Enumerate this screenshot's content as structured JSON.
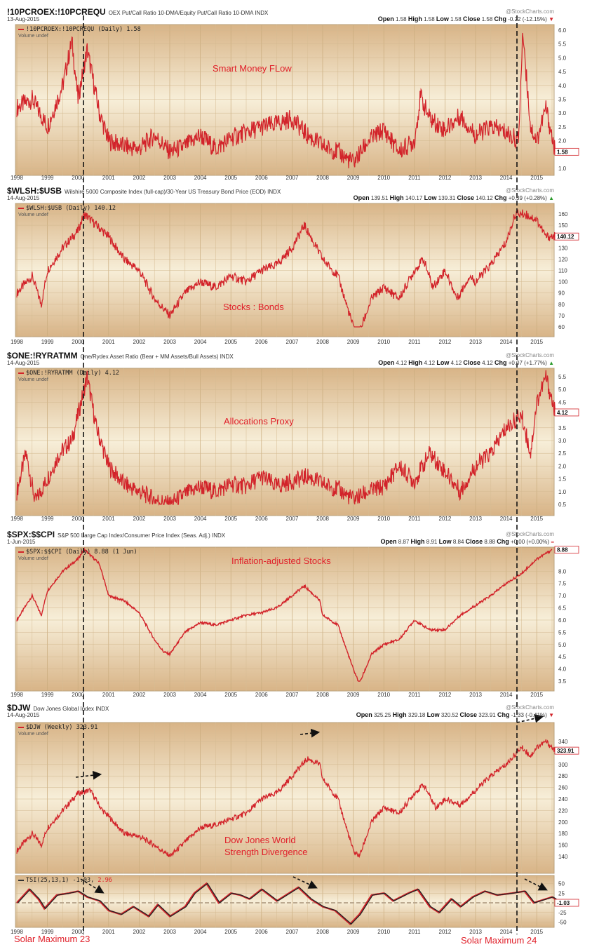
{
  "panels": [
    {
      "symbol": "!10PCROEX:!10PCREQU",
      "desc": "OEX Put/Call Ratio 10-DMA/Equity Put/Call Ratio 10-DMA  INDX",
      "date": "13-Aug-2015",
      "open": "1.58",
      "high": "1.58",
      "low": "1.58",
      "close": "1.58",
      "chg": "-0.22 (-12.15%)",
      "chg_dir": "▼",
      "legend": "!10PCROEX:!10PCREQU (Daily) 1.58",
      "volume": "Volume undef",
      "annotation": "Smart Money FLow",
      "watermark": "@StockCharts.com"
    },
    {
      "symbol": "$WLSH:$USB",
      "desc": "Wilshire 5000 Composite Index (full-cap)/30-Year US Treasury Bond Price (EOD)  INDX",
      "date": "14-Aug-2015",
      "open": "139.51",
      "high": "140.17",
      "low": "139.31",
      "close": "140.12",
      "chg": "+0.39 (+0.28%)",
      "chg_dir": "▲",
      "legend": "$WLSH:$USB (Daily) 140.12",
      "volume": "Volume undef",
      "annotation": "Stocks : Bonds",
      "watermark": "@StockCharts.com"
    },
    {
      "symbol": "$ONE:!RYRATMM",
      "desc": "One/Rydex Asset Ratio (Bear + MM Assets/Bull Assets)  INDX",
      "date": "14-Aug-2015",
      "open": "4.12",
      "high": "4.12",
      "low": "4.12",
      "close": "4.12",
      "chg": "+0.07 (+1.77%)",
      "chg_dir": "▲",
      "legend": "$ONE:!RYRATMM (Daily) 4.12",
      "volume": "Volume undef",
      "annotation": "Allocations Proxy",
      "watermark": "@StockCharts.com"
    },
    {
      "symbol": "$SPX:$$CPI",
      "desc": "S&P 500 Large Cap Index/Consumer Price Index (Seas. Adj.)  INDX",
      "date": "1-Jun-2015",
      "open": "8.87",
      "high": "8.91",
      "low": "8.84",
      "close": "8.88",
      "chg": "+0.00 (+0.00%)",
      "chg_dir": "=",
      "legend": "$SPX:$$CPI (Daily) 8.88 (1 Jun)",
      "volume": "Volume undef",
      "annotation": "Inflation-adjusted Stocks",
      "watermark": "@StockCharts.com"
    },
    {
      "symbol": "$DJW",
      "desc": "Dow Jones Global Index  INDX",
      "date": "14-Aug-2015",
      "open": "325.25",
      "high": "329.18",
      "low": "320.52",
      "close": "323.91",
      "chg": "-1.33 (-0.41%)",
      "chg_dir": "▼",
      "legend": "$DJW (Weekly) 323.91",
      "volume": "Volume undef",
      "annotation": "Dow Jones World",
      "annotation2": "Strength Divergence",
      "watermark": "@StockCharts.com"
    }
  ],
  "tsi": {
    "legend": "TSI(25,13,1) -1.03,",
    "legend_value": "2.96"
  },
  "solar_labels": [
    "Solar Maximum 23",
    "Solar Maximum 24"
  ],
  "colors": {
    "line": "#d2232a",
    "bg_dark": "#d8b487",
    "bg_light": "#f7eed8"
  },
  "chart_data": [
    {
      "type": "line",
      "title": "Smart Money FLow",
      "ylim": [
        1.0,
        6.0
      ],
      "last_label": "1.58",
      "yticks": [
        "6.0",
        "5.5",
        "5.0",
        "4.5",
        "4.0",
        "3.5",
        "3.0",
        "2.5",
        "2.0",
        "1.0"
      ],
      "noise": 0.35,
      "points": [
        [
          1998,
          3.2
        ],
        [
          1998.5,
          3.5
        ],
        [
          1999,
          2.5
        ],
        [
          1999.5,
          4.0
        ],
        [
          1999.8,
          5.6
        ],
        [
          2000,
          3.5
        ],
        [
          2000.3,
          5.3
        ],
        [
          2000.7,
          3.0
        ],
        [
          2001,
          2.0
        ],
        [
          2001.5,
          1.8
        ],
        [
          2002,
          1.7
        ],
        [
          2002.5,
          2.2
        ],
        [
          2003,
          1.6
        ],
        [
          2003.5,
          1.8
        ],
        [
          2004,
          2.2
        ],
        [
          2004.5,
          1.7
        ],
        [
          2005,
          2.1
        ],
        [
          2005.5,
          2.3
        ],
        [
          2006,
          2.5
        ],
        [
          2006.5,
          2.6
        ],
        [
          2007,
          2.8
        ],
        [
          2007.5,
          2.2
        ],
        [
          2008,
          1.8
        ],
        [
          2008.5,
          1.6
        ],
        [
          2009,
          1.2
        ],
        [
          2009.5,
          2.0
        ],
        [
          2010,
          2.4
        ],
        [
          2010.5,
          1.6
        ],
        [
          2011,
          2.0
        ],
        [
          2011.2,
          3.6
        ],
        [
          2011.5,
          2.8
        ],
        [
          2012,
          2.4
        ],
        [
          2012.5,
          2.9
        ],
        [
          2013,
          2.2
        ],
        [
          2013.5,
          2.5
        ],
        [
          2014,
          2.3
        ],
        [
          2014.4,
          2.0
        ],
        [
          2014.55,
          6.0
        ],
        [
          2014.65,
          4.5
        ],
        [
          2014.8,
          2.5
        ],
        [
          2015,
          2.0
        ],
        [
          2015.3,
          3.2
        ],
        [
          2015.6,
          1.6
        ]
      ]
    },
    {
      "type": "line",
      "title": "Stocks : Bonds",
      "ylim": [
        60,
        160
      ],
      "last_label": "140.12",
      "yticks": [
        "160",
        "150",
        "130",
        "120",
        "110",
        "100",
        "90",
        "80",
        "70",
        "60"
      ],
      "noise": 4,
      "points": [
        [
          1998,
          90
        ],
        [
          1998.5,
          105
        ],
        [
          1998.8,
          80
        ],
        [
          1999,
          110
        ],
        [
          1999.5,
          130
        ],
        [
          2000,
          145
        ],
        [
          2000.2,
          160
        ],
        [
          2000.6,
          150
        ],
        [
          2001,
          140
        ],
        [
          2001.5,
          120
        ],
        [
          2002,
          110
        ],
        [
          2002.5,
          85
        ],
        [
          2003,
          70
        ],
        [
          2003.5,
          90
        ],
        [
          2004,
          100
        ],
        [
          2004.5,
          95
        ],
        [
          2005,
          105
        ],
        [
          2005.5,
          100
        ],
        [
          2006,
          110
        ],
        [
          2006.5,
          115
        ],
        [
          2007,
          130
        ],
        [
          2007.4,
          150
        ],
        [
          2007.8,
          130
        ],
        [
          2008,
          120
        ],
        [
          2008.5,
          105
        ],
        [
          2009,
          60
        ],
        [
          2009.2,
          55
        ],
        [
          2009.6,
          85
        ],
        [
          2010,
          95
        ],
        [
          2010.5,
          85
        ],
        [
          2011,
          110
        ],
        [
          2011.3,
          120
        ],
        [
          2011.6,
          95
        ],
        [
          2012,
          110
        ],
        [
          2012.4,
          85
        ],
        [
          2012.8,
          105
        ],
        [
          2013,
          100
        ],
        [
          2013.5,
          115
        ],
        [
          2014,
          135
        ],
        [
          2014.3,
          160
        ],
        [
          2014.6,
          160
        ],
        [
          2015,
          155
        ],
        [
          2015.3,
          140
        ],
        [
          2015.6,
          140
        ]
      ]
    },
    {
      "type": "line",
      "title": "Allocations Proxy",
      "ylim": [
        0.5,
        5.5
      ],
      "last_label": "4.12",
      "yticks": [
        "5.5",
        "5.0",
        "4.5",
        "3.5",
        "3.0",
        "2.5",
        "2.0",
        "1.5",
        "1.0",
        "0.5"
      ],
      "noise": 0.35,
      "points": [
        [
          1998,
          1.0
        ],
        [
          1998.3,
          2.5
        ],
        [
          1998.6,
          0.6
        ],
        [
          1999,
          1.5
        ],
        [
          1999.4,
          2.5
        ],
        [
          1999.8,
          3.0
        ],
        [
          2000,
          4.0
        ],
        [
          2000.3,
          5.5
        ],
        [
          2000.6,
          3.5
        ],
        [
          2001,
          2.0
        ],
        [
          2001.5,
          1.3
        ],
        [
          2002,
          1.0
        ],
        [
          2002.5,
          0.7
        ],
        [
          2003,
          0.5
        ],
        [
          2003.5,
          0.9
        ],
        [
          2004,
          1.2
        ],
        [
          2004.5,
          1.0
        ],
        [
          2005,
          1.3
        ],
        [
          2005.5,
          1.2
        ],
        [
          2006,
          1.6
        ],
        [
          2006.5,
          1.2
        ],
        [
          2007,
          1.4
        ],
        [
          2007.5,
          1.6
        ],
        [
          2008,
          1.3
        ],
        [
          2008.5,
          1.1
        ],
        [
          2009,
          0.7
        ],
        [
          2009.5,
          1.0
        ],
        [
          2010,
          1.2
        ],
        [
          2010.5,
          2.0
        ],
        [
          2011,
          1.4
        ],
        [
          2011.5,
          2.5
        ],
        [
          2012,
          1.8
        ],
        [
          2012.5,
          1.0
        ],
        [
          2013,
          2.0
        ],
        [
          2013.5,
          2.5
        ],
        [
          2014,
          3.5
        ],
        [
          2014.5,
          4.0
        ],
        [
          2014.8,
          2.5
        ],
        [
          2015,
          4.5
        ],
        [
          2015.3,
          5.5
        ],
        [
          2015.6,
          4.1
        ]
      ]
    },
    {
      "type": "line",
      "title": "Inflation-adjusted Stocks",
      "ylim": [
        3.5,
        8.9
      ],
      "last_label": "8.88",
      "yticks": [
        "8.0",
        "7.5",
        "7.0",
        "6.5",
        "6.0",
        "5.5",
        "5.0",
        "4.5",
        "4.0",
        "3.5"
      ],
      "noise": 0.05,
      "points": [
        [
          1998,
          6.0
        ],
        [
          1998.5,
          7.0
        ],
        [
          1998.8,
          6.2
        ],
        [
          1999,
          7.2
        ],
        [
          1999.5,
          8.0
        ],
        [
          2000,
          8.5
        ],
        [
          2000.2,
          8.9
        ],
        [
          2000.7,
          8.3
        ],
        [
          2001,
          7.0
        ],
        [
          2001.5,
          6.8
        ],
        [
          2002,
          6.3
        ],
        [
          2002.5,
          5.2
        ],
        [
          2002.8,
          4.7
        ],
        [
          2003,
          4.6
        ],
        [
          2003.5,
          5.5
        ],
        [
          2004,
          5.9
        ],
        [
          2004.5,
          5.8
        ],
        [
          2005,
          6.0
        ],
        [
          2005.5,
          6.2
        ],
        [
          2006,
          6.3
        ],
        [
          2006.5,
          6.5
        ],
        [
          2007,
          7.0
        ],
        [
          2007.4,
          7.4
        ],
        [
          2007.9,
          6.8
        ],
        [
          2008,
          6.2
        ],
        [
          2008.5,
          5.8
        ],
        [
          2009,
          4.0
        ],
        [
          2009.2,
          3.4
        ],
        [
          2009.6,
          4.6
        ],
        [
          2010,
          5.0
        ],
        [
          2010.5,
          5.2
        ],
        [
          2011,
          6.0
        ],
        [
          2011.5,
          5.6
        ],
        [
          2012,
          5.6
        ],
        [
          2012.5,
          6.2
        ],
        [
          2013,
          6.6
        ],
        [
          2013.5,
          7.0
        ],
        [
          2014,
          7.5
        ],
        [
          2014.5,
          7.9
        ],
        [
          2015,
          8.5
        ],
        [
          2015.5,
          8.88
        ]
      ]
    },
    {
      "type": "line",
      "title": "Dow Jones World Strength Divergence",
      "ylim": [
        140,
        340
      ],
      "last_label": "323.91",
      "yticks": [
        "340",
        "300",
        "280",
        "260",
        "240",
        "220",
        "200",
        "180",
        "160",
        "140"
      ],
      "noise": 5,
      "points": [
        [
          1998,
          150
        ],
        [
          1998.5,
          180
        ],
        [
          1998.8,
          160
        ],
        [
          1999,
          190
        ],
        [
          1999.5,
          220
        ],
        [
          2000,
          250
        ],
        [
          2000.4,
          255
        ],
        [
          2000.8,
          220
        ],
        [
          2001,
          210
        ],
        [
          2001.5,
          180
        ],
        [
          2002,
          175
        ],
        [
          2002.5,
          160
        ],
        [
          2003,
          140
        ],
        [
          2003.5,
          165
        ],
        [
          2004,
          190
        ],
        [
          2004.5,
          195
        ],
        [
          2005,
          205
        ],
        [
          2005.5,
          215
        ],
        [
          2006,
          240
        ],
        [
          2006.5,
          250
        ],
        [
          2007,
          280
        ],
        [
          2007.5,
          310
        ],
        [
          2007.9,
          300
        ],
        [
          2008,
          275
        ],
        [
          2008.5,
          240
        ],
        [
          2009,
          150
        ],
        [
          2009.2,
          140
        ],
        [
          2009.6,
          200
        ],
        [
          2010,
          225
        ],
        [
          2010.5,
          215
        ],
        [
          2011,
          250
        ],
        [
          2011.3,
          265
        ],
        [
          2011.7,
          225
        ],
        [
          2012,
          240
        ],
        [
          2012.5,
          230
        ],
        [
          2013,
          255
        ],
        [
          2013.5,
          280
        ],
        [
          2014,
          300
        ],
        [
          2014.5,
          330
        ],
        [
          2014.8,
          315
        ],
        [
          2015,
          330
        ],
        [
          2015.3,
          340
        ],
        [
          2015.6,
          324
        ]
      ]
    },
    {
      "type": "line",
      "title": "TSI(25,13,1)",
      "ylim": [
        -60,
        60
      ],
      "last_label": "-1.03",
      "yticks": [
        "50",
        "25",
        "-25",
        "-50"
      ],
      "noise": 0,
      "points": [
        [
          1998,
          0
        ],
        [
          1998.4,
          35
        ],
        [
          1998.7,
          10
        ],
        [
          1998.9,
          -15
        ],
        [
          1999.3,
          20
        ],
        [
          1999.7,
          25
        ],
        [
          2000,
          30
        ],
        [
          2000.3,
          15
        ],
        [
          2000.7,
          5
        ],
        [
          2001,
          -20
        ],
        [
          2001.4,
          -30
        ],
        [
          2001.8,
          -10
        ],
        [
          2002.3,
          -35
        ],
        [
          2002.6,
          -5
        ],
        [
          2003,
          -35
        ],
        [
          2003.5,
          -10
        ],
        [
          2003.8,
          25
        ],
        [
          2004.2,
          50
        ],
        [
          2004.6,
          0
        ],
        [
          2005,
          25
        ],
        [
          2005.3,
          20
        ],
        [
          2005.6,
          10
        ],
        [
          2006,
          35
        ],
        [
          2006.5,
          5
        ],
        [
          2006.9,
          25
        ],
        [
          2007.2,
          40
        ],
        [
          2007.6,
          10
        ],
        [
          2008,
          -10
        ],
        [
          2008.4,
          -20
        ],
        [
          2008.9,
          -55
        ],
        [
          2009.2,
          -30
        ],
        [
          2009.6,
          20
        ],
        [
          2010,
          25
        ],
        [
          2010.3,
          5
        ],
        [
          2010.8,
          25
        ],
        [
          2011.1,
          35
        ],
        [
          2011.5,
          -10
        ],
        [
          2011.8,
          -25
        ],
        [
          2012.2,
          10
        ],
        [
          2012.5,
          -10
        ],
        [
          2012.9,
          15
        ],
        [
          2013.3,
          30
        ],
        [
          2013.7,
          20
        ],
        [
          2014.2,
          25
        ],
        [
          2014.6,
          30
        ],
        [
          2014.9,
          0
        ],
        [
          2015.3,
          10
        ],
        [
          2015.5,
          15
        ],
        [
          2015.8,
          0
        ]
      ]
    }
  ],
  "years": [
    "1998",
    "1999",
    "2000",
    "2001",
    "2002",
    "2003",
    "2004",
    "2005",
    "2006",
    "2007",
    "2008",
    "2009",
    "2010",
    "2011",
    "2012",
    "2013",
    "2014",
    "2015"
  ]
}
